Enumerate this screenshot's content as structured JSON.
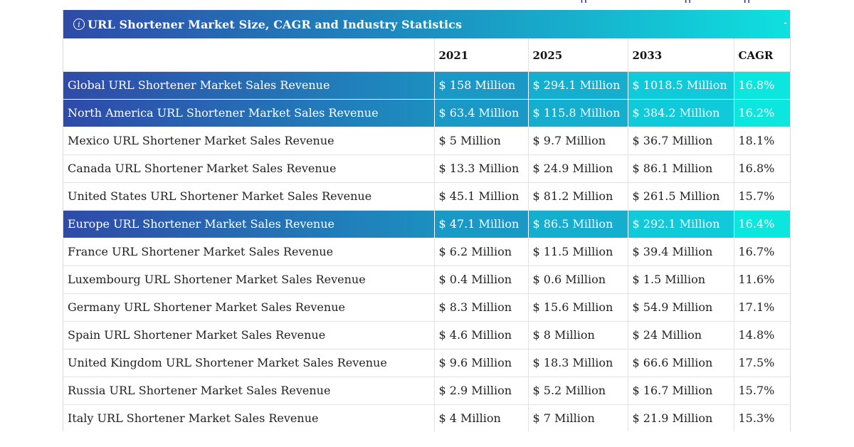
{
  "top_fragment": [
    {
      "text": ","
    },
    {
      "text": "p"
    },
    {
      "text": "g"
    },
    {
      "text": "g"
    }
  ],
  "panel": {
    "title": "URL Shortener Market Size, CAGR and Industry Statistics",
    "info_icon_glyph": "i",
    "toggle_symbol": "-"
  },
  "table": {
    "headers": [
      "",
      "2021",
      "2025",
      "2033",
      "CAGR"
    ],
    "rows": [
      {
        "label": "Global URL Shortener Market Sales Revenue",
        "y2021": "$ 158 Million",
        "y2025": "$ 294.1 Million",
        "y2033": "$ 1018.5 Million",
        "cagr": "16.8%",
        "highlight": true
      },
      {
        "label": "North America URL Shortener Market Sales Revenue",
        "y2021": "$ 63.4 Million",
        "y2025": "$ 115.8 Million",
        "y2033": "$ 384.2 Million",
        "cagr": "16.2%",
        "highlight": true
      },
      {
        "label": "Mexico URL Shortener Market Sales Revenue",
        "y2021": "$ 5 Million",
        "y2025": "$ 9.7 Million",
        "y2033": "$ 36.7 Million",
        "cagr": "18.1%",
        "highlight": false
      },
      {
        "label": "Canada URL Shortener Market Sales Revenue",
        "y2021": "$ 13.3 Million",
        "y2025": "$ 24.9 Million",
        "y2033": "$ 86.1 Million",
        "cagr": "16.8%",
        "highlight": false
      },
      {
        "label": "United States URL Shortener Market Sales Revenue",
        "y2021": "$ 45.1 Million",
        "y2025": "$ 81.2 Million",
        "y2033": "$ 261.5 Million",
        "cagr": "15.7%",
        "highlight": false
      },
      {
        "label": "Europe URL Shortener Market Sales Revenue",
        "y2021": "$ 47.1 Million",
        "y2025": "$ 86.5 Million",
        "y2033": "$ 292.1 Million",
        "cagr": "16.4%",
        "highlight": true
      },
      {
        "label": "France URL Shortener Market Sales Revenue",
        "y2021": "$ 6.2 Million",
        "y2025": "$ 11.5 Million",
        "y2033": "$ 39.4 Million",
        "cagr": "16.7%",
        "highlight": false
      },
      {
        "label": "Luxembourg URL Shortener Market Sales Revenue",
        "y2021": "$ 0.4 Million",
        "y2025": "$ 0.6 Million",
        "y2033": "$ 1.5 Million",
        "cagr": "11.6%",
        "highlight": false
      },
      {
        "label": "Germany URL Shortener Market Sales Revenue",
        "y2021": "$ 8.3 Million",
        "y2025": "$ 15.6 Million",
        "y2033": "$ 54.9 Million",
        "cagr": "17.1%",
        "highlight": false
      },
      {
        "label": "Spain URL Shortener Market Sales Revenue",
        "y2021": "$ 4.6 Million",
        "y2025": "$ 8 Million",
        "y2033": "$ 24 Million",
        "cagr": "14.8%",
        "highlight": false
      },
      {
        "label": "United Kingdom URL Shortener Market Sales Revenue",
        "y2021": "$ 9.6 Million",
        "y2025": "$ 18.3 Million",
        "y2033": "$ 66.6 Million",
        "cagr": "17.5%",
        "highlight": false
      },
      {
        "label": "Russia URL Shortener Market Sales Revenue",
        "y2021": "$ 2.9 Million",
        "y2025": "$ 5.2 Million",
        "y2033": "$ 16.7 Million",
        "cagr": "15.7%",
        "highlight": false
      },
      {
        "label": "Italy URL Shortener Market Sales Revenue",
        "y2021": "$ 4 Million",
        "y2025": "$ 7 Million",
        "y2033": "$ 21.9 Million",
        "cagr": "15.3%",
        "highlight": false
      }
    ]
  },
  "colors": {
    "gradient_start": "#2f4aa8",
    "gradient_mid": "#1c8fc0",
    "gradient_end": "#0fe0df"
  },
  "icons": {
    "info": "info-circle-icon"
  }
}
